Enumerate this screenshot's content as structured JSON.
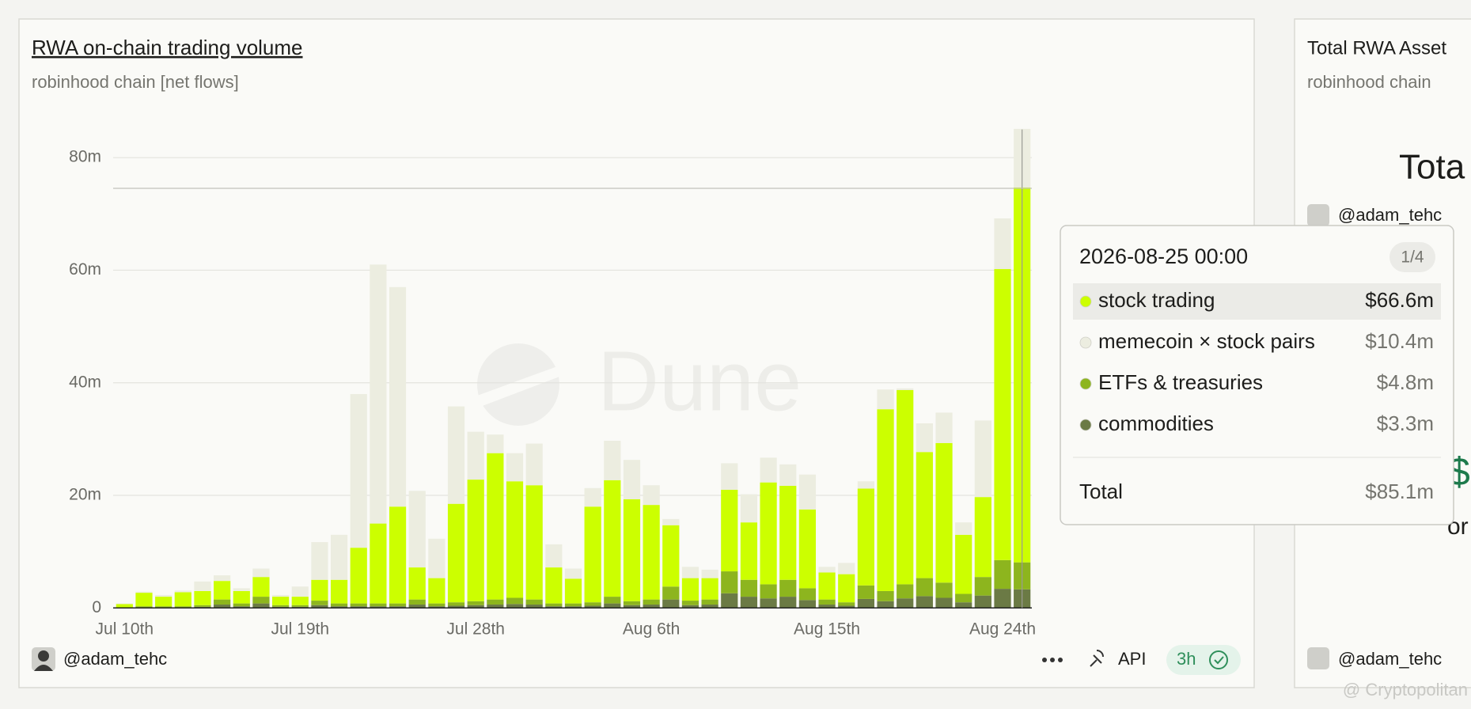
{
  "chart_data": {
    "type": "bar",
    "stacked": true,
    "title": "RWA on-chain trading volume",
    "subtitle": "robinhood chain [net flows]",
    "watermark": "Dune",
    "categories": [
      "Jul 10th",
      null,
      null,
      null,
      null,
      null,
      null,
      null,
      null,
      "Jul 19th",
      null,
      null,
      null,
      null,
      null,
      null,
      null,
      null,
      "Jul 28th",
      null,
      null,
      null,
      null,
      null,
      null,
      null,
      null,
      "Aug 6th",
      null,
      null,
      null,
      null,
      null,
      null,
      null,
      null,
      "Aug 15th",
      null,
      null,
      null,
      null,
      null,
      null,
      null,
      null,
      "Aug 24th",
      null
    ],
    "series": [
      {
        "name": "stock trading",
        "color": "#ccff00",
        "values": [
          0.6,
          2.4,
          1.7,
          2.5,
          2.5,
          3.3,
          2.2,
          3.5,
          1.5,
          1.5,
          3.7,
          4.2,
          9.9,
          14.2,
          17.2,
          5.7,
          4.5,
          17.5,
          21.6,
          26,
          20.7,
          20.3,
          6.4,
          4.4,
          17,
          20.7,
          18.1,
          16.8,
          10.9,
          4,
          3.8,
          14.5,
          10.2,
          18.1,
          16.7,
          14,
          4.8,
          5,
          17.2,
          32.3,
          34.5,
          22.4,
          24.8,
          10.5,
          14.2,
          51.7,
          66.6
        ]
      },
      {
        "name": "memecoin × stock pairs",
        "color": "#ecede0",
        "values": [
          0.1,
          0.2,
          0.3,
          0.3,
          1.7,
          1,
          0.5,
          1.5,
          0.3,
          1.8,
          6.7,
          8,
          27.3,
          46,
          39,
          13.6,
          7,
          17.3,
          8.5,
          3.3,
          5,
          7.4,
          4.1,
          1.8,
          3.3,
          7,
          7,
          3.5,
          1.1,
          2,
          1.5,
          4.7,
          5,
          4.4,
          3.8,
          6.2,
          1,
          2,
          1.3,
          3.5,
          0.3,
          5.1,
          5.4,
          2.2,
          13.6,
          9,
          10.4
        ]
      },
      {
        "name": "ETFs & treasuries",
        "color": "#8db51e",
        "values": [
          0.1,
          0.2,
          0.2,
          0.2,
          0.3,
          0.9,
          0.5,
          1.2,
          0.3,
          0.3,
          0.8,
          0.5,
          0.5,
          0.5,
          0.5,
          0.9,
          0.5,
          0.6,
          0.7,
          0.9,
          1.1,
          0.9,
          0.5,
          0.5,
          0.6,
          1.2,
          0.7,
          0.9,
          2.3,
          0.8,
          0.9,
          3.9,
          3,
          2.5,
          3,
          2.1,
          0.9,
          0.6,
          2.4,
          1.8,
          2.5,
          3.2,
          2.7,
          1.5,
          3.3,
          5.1,
          4.8
        ]
      },
      {
        "name": "commodities",
        "color": "#6b7a45",
        "values": [
          0,
          0.1,
          0.1,
          0.1,
          0.2,
          0.6,
          0.3,
          0.8,
          0.2,
          0.2,
          0.5,
          0.3,
          0.3,
          0.3,
          0.3,
          0.6,
          0.3,
          0.4,
          0.5,
          0.6,
          0.7,
          0.6,
          0.3,
          0.3,
          0.4,
          0.8,
          0.5,
          0.6,
          1.5,
          0.5,
          0.6,
          2.6,
          2,
          1.7,
          2,
          1.4,
          0.6,
          0.4,
          1.6,
          1.2,
          1.7,
          2.1,
          1.8,
          1,
          2.2,
          3.4,
          3.3
        ]
      }
    ],
    "ylim": [
      0,
      85
    ],
    "yticks": [
      0,
      {
        "value": 20,
        "label": "20m"
      },
      {
        "value": 40,
        "label": "40m"
      },
      {
        "value": 60,
        "label": "60m"
      },
      {
        "value": 80,
        "label": "80m"
      }
    ],
    "grid": true
  },
  "chart_footer": {
    "author": "@adam_tehc",
    "api": "API",
    "freshness": "3h"
  },
  "tooltip": {
    "date": "2026-08-25 00:00",
    "page": "1/4",
    "value_labels": [
      "$66.6m",
      "$10.4m",
      "$4.8m",
      "$3.3m"
    ],
    "total_label": "Total",
    "total": "$85.1m"
  },
  "side_panel": {
    "title": "Total RWA Asset",
    "subtitle": "robinhood chain",
    "big_text": "Tota",
    "author": "@adam_tehc",
    "fragment_symbol": "$",
    "fragment_text": "or",
    "footer_author": "@adam_tehc"
  },
  "watermark": "@ Cryptopolitan"
}
